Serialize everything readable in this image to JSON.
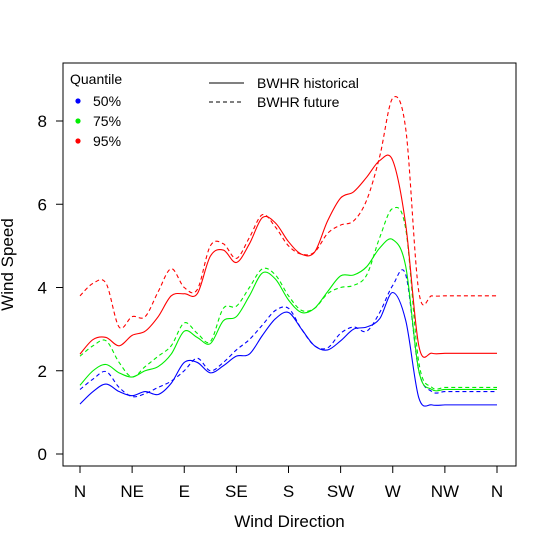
{
  "chart_data": {
    "type": "line",
    "title": "",
    "xlabel": "Wind Direction",
    "ylabel": "Wind Speed",
    "xlim": [
      0,
      16
    ],
    "ylim": [
      -0.25,
      9.3
    ],
    "x_ticks": [
      {
        "pos": 0,
        "label": "N"
      },
      {
        "pos": 2,
        "label": "NE"
      },
      {
        "pos": 4,
        "label": "E"
      },
      {
        "pos": 6,
        "label": "SE"
      },
      {
        "pos": 8,
        "label": "S"
      },
      {
        "pos": 10,
        "label": "SW"
      },
      {
        "pos": 12,
        "label": "W"
      },
      {
        "pos": 14,
        "label": "NW"
      },
      {
        "pos": 16,
        "label": "N"
      }
    ],
    "y_ticks": [
      0,
      2,
      4,
      6,
      8
    ],
    "x": [
      0,
      0.5,
      1,
      1.5,
      2,
      2.5,
      3,
      3.5,
      4,
      4.5,
      5,
      5.5,
      6,
      6.5,
      7,
      7.5,
      8,
      8.5,
      9,
      9.5,
      10,
      10.5,
      11,
      11.5,
      12,
      12.5,
      13,
      13.5,
      14,
      14.5,
      15,
      15.5,
      16
    ],
    "series": [
      {
        "quantile": "50%",
        "scenario": "BWHR historical",
        "color": "#0000ff",
        "dash": "solid",
        "values": [
          1.2,
          1.5,
          1.68,
          1.5,
          1.4,
          1.5,
          1.43,
          1.7,
          2.2,
          2.2,
          1.95,
          2.12,
          2.35,
          2.4,
          2.85,
          3.25,
          3.4,
          3.0,
          2.6,
          2.5,
          2.72,
          3.0,
          3.05,
          3.25,
          3.88,
          3.2,
          1.35,
          1.18,
          1.18,
          1.18,
          1.18,
          1.18,
          1.18
        ]
      },
      {
        "quantile": "50%",
        "scenario": "BWHR future",
        "color": "#0000ff",
        "dash": "dashed",
        "values": [
          1.55,
          1.8,
          1.98,
          1.6,
          1.38,
          1.45,
          1.6,
          1.75,
          2.0,
          2.3,
          2.0,
          2.2,
          2.5,
          2.75,
          3.1,
          3.45,
          3.5,
          3.0,
          2.6,
          2.55,
          2.9,
          3.05,
          2.95,
          3.4,
          4.05,
          4.3,
          2.0,
          1.5,
          1.5,
          1.5,
          1.5,
          1.5,
          1.5
        ]
      },
      {
        "quantile": "75%",
        "scenario": "BWHR historical",
        "color": "#00ee00",
        "dash": "solid",
        "values": [
          1.65,
          2.0,
          2.15,
          1.95,
          1.85,
          2.0,
          2.1,
          2.4,
          2.95,
          2.8,
          2.65,
          3.2,
          3.3,
          3.8,
          4.35,
          4.2,
          3.7,
          3.4,
          3.5,
          3.9,
          4.28,
          4.3,
          4.5,
          4.95,
          5.15,
          4.5,
          2.0,
          1.55,
          1.55,
          1.55,
          1.55,
          1.55,
          1.55
        ]
      },
      {
        "quantile": "75%",
        "scenario": "BWHR future",
        "color": "#00ee00",
        "dash": "dashed",
        "values": [
          2.35,
          2.6,
          2.72,
          2.2,
          1.85,
          2.1,
          2.35,
          2.6,
          3.15,
          2.9,
          2.7,
          3.5,
          3.55,
          4.0,
          4.45,
          4.3,
          3.8,
          3.45,
          3.5,
          3.85,
          4.0,
          4.05,
          4.3,
          5.2,
          5.9,
          5.4,
          2.2,
          1.6,
          1.6,
          1.6,
          1.6,
          1.6,
          1.6
        ]
      },
      {
        "quantile": "95%",
        "scenario": "BWHR historical",
        "color": "#ff0000",
        "dash": "solid",
        "values": [
          2.4,
          2.75,
          2.8,
          2.6,
          2.85,
          2.95,
          3.3,
          3.8,
          3.85,
          3.85,
          4.75,
          4.9,
          4.6,
          5.05,
          5.68,
          5.55,
          5.1,
          4.8,
          4.85,
          5.6,
          6.15,
          6.3,
          6.65,
          7.05,
          7.05,
          5.5,
          2.6,
          2.42,
          2.42,
          2.42,
          2.42,
          2.42,
          2.42
        ]
      },
      {
        "quantile": "95%",
        "scenario": "BWHR future",
        "color": "#ff0000",
        "dash": "dashed",
        "values": [
          3.8,
          4.1,
          4.1,
          3.05,
          3.3,
          3.3,
          3.9,
          4.45,
          4.0,
          3.95,
          5.0,
          5.05,
          4.7,
          5.2,
          5.75,
          5.45,
          5.0,
          4.8,
          4.85,
          5.3,
          5.5,
          5.6,
          6.1,
          7.15,
          8.55,
          7.8,
          3.9,
          3.8,
          3.8,
          3.8,
          3.8,
          3.8,
          3.8
        ]
      }
    ],
    "legends": {
      "quantile": {
        "title": "Quantile",
        "items": [
          {
            "label": "50%",
            "color": "#0000ff"
          },
          {
            "label": "75%",
            "color": "#00ee00"
          },
          {
            "label": "95%",
            "color": "#ff0000"
          }
        ]
      },
      "scenario": {
        "items": [
          {
            "label": "BWHR historical",
            "dash": "solid"
          },
          {
            "label": "BWHR future",
            "dash": "dashed"
          }
        ]
      }
    }
  }
}
